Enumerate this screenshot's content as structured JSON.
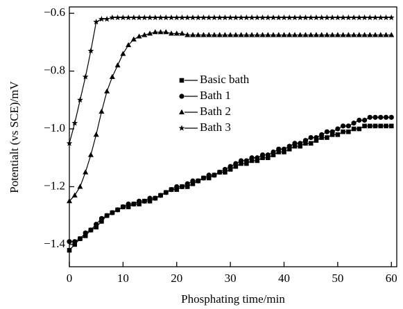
{
  "chart_data": {
    "type": "line",
    "x_label": "Phosphating time/min",
    "y_label": "Potentialt (vs SCE)/mV",
    "x": [
      0,
      1,
      2,
      3,
      4,
      5,
      6,
      7,
      8,
      9,
      10,
      11,
      12,
      13,
      14,
      15,
      16,
      17,
      18,
      19,
      20,
      21,
      22,
      23,
      24,
      25,
      26,
      27,
      28,
      29,
      30,
      31,
      32,
      33,
      34,
      35,
      36,
      37,
      38,
      39,
      40,
      41,
      42,
      43,
      44,
      45,
      46,
      47,
      48,
      49,
      50,
      51,
      52,
      53,
      54,
      55,
      56,
      57,
      58,
      59,
      60
    ],
    "series": [
      {
        "name": "Basic bath",
        "color": "#000000",
        "marker": "square",
        "values": [
          -1.42,
          -1.4,
          -1.38,
          -1.37,
          -1.35,
          -1.34,
          -1.32,
          -1.3,
          -1.29,
          -1.28,
          -1.27,
          -1.27,
          -1.26,
          -1.26,
          -1.25,
          -1.25,
          -1.24,
          -1.23,
          -1.22,
          -1.21,
          -1.21,
          -1.2,
          -1.2,
          -1.19,
          -1.18,
          -1.17,
          -1.17,
          -1.16,
          -1.15,
          -1.15,
          -1.14,
          -1.13,
          -1.12,
          -1.12,
          -1.11,
          -1.11,
          -1.1,
          -1.1,
          -1.09,
          -1.08,
          -1.08,
          -1.07,
          -1.06,
          -1.06,
          -1.05,
          -1.05,
          -1.04,
          -1.03,
          -1.03,
          -1.02,
          -1.02,
          -1.01,
          -1.01,
          -1.0,
          -1.0,
          -0.99,
          -0.99,
          -0.99,
          -0.99,
          -0.99,
          -0.99
        ]
      },
      {
        "name": "Bath 1",
        "color": "#000000",
        "marker": "circle",
        "values": [
          -1.39,
          -1.39,
          -1.38,
          -1.36,
          -1.35,
          -1.33,
          -1.31,
          -1.3,
          -1.29,
          -1.28,
          -1.27,
          -1.26,
          -1.26,
          -1.25,
          -1.25,
          -1.24,
          -1.24,
          -1.23,
          -1.22,
          -1.21,
          -1.2,
          -1.2,
          -1.19,
          -1.18,
          -1.18,
          -1.17,
          -1.16,
          -1.16,
          -1.15,
          -1.14,
          -1.13,
          -1.12,
          -1.11,
          -1.11,
          -1.1,
          -1.1,
          -1.09,
          -1.09,
          -1.08,
          -1.07,
          -1.07,
          -1.06,
          -1.05,
          -1.05,
          -1.04,
          -1.03,
          -1.03,
          -1.02,
          -1.01,
          -1.01,
          -1.0,
          -0.99,
          -0.99,
          -0.98,
          -0.97,
          -0.97,
          -0.96,
          -0.96,
          -0.96,
          -0.96,
          -0.96
        ]
      },
      {
        "name": "Bath 2",
        "color": "#000000",
        "marker": "triangle",
        "values": [
          -1.25,
          -1.23,
          -1.2,
          -1.15,
          -1.09,
          -1.02,
          -0.94,
          -0.87,
          -0.82,
          -0.78,
          -0.74,
          -0.71,
          -0.69,
          -0.68,
          -0.675,
          -0.67,
          -0.665,
          -0.665,
          -0.665,
          -0.67,
          -0.67,
          -0.67,
          -0.675,
          -0.675,
          -0.675,
          -0.675,
          -0.675,
          -0.675,
          -0.675,
          -0.675,
          -0.675,
          -0.675,
          -0.675,
          -0.675,
          -0.675,
          -0.675,
          -0.675,
          -0.675,
          -0.675,
          -0.675,
          -0.675,
          -0.675,
          -0.675,
          -0.675,
          -0.675,
          -0.675,
          -0.675,
          -0.675,
          -0.675,
          -0.675,
          -0.675,
          -0.675,
          -0.675,
          -0.675,
          -0.675,
          -0.675,
          -0.675,
          -0.675,
          -0.675,
          -0.675,
          -0.675
        ]
      },
      {
        "name": "Bath 3",
        "color": "#000000",
        "marker": "star",
        "values": [
          -1.05,
          -0.98,
          -0.9,
          -0.82,
          -0.73,
          -0.63,
          -0.62,
          -0.62,
          -0.615,
          -0.615,
          -0.615,
          -0.615,
          -0.615,
          -0.615,
          -0.615,
          -0.615,
          -0.615,
          -0.615,
          -0.615,
          -0.615,
          -0.615,
          -0.615,
          -0.615,
          -0.615,
          -0.615,
          -0.615,
          -0.615,
          -0.615,
          -0.615,
          -0.615,
          -0.615,
          -0.615,
          -0.615,
          -0.615,
          -0.615,
          -0.615,
          -0.615,
          -0.615,
          -0.615,
          -0.615,
          -0.615,
          -0.615,
          -0.615,
          -0.615,
          -0.615,
          -0.615,
          -0.615,
          -0.615,
          -0.615,
          -0.615,
          -0.615,
          -0.615,
          -0.615,
          -0.615,
          -0.615,
          -0.615,
          -0.615,
          -0.615,
          -0.615,
          -0.615,
          -0.615
        ]
      }
    ],
    "xlim": [
      0,
      61
    ],
    "ylim": [
      -1.477,
      -0.578
    ],
    "xticks": [
      0,
      10,
      20,
      30,
      40,
      50,
      60
    ],
    "yticks": [
      {
        "value": -0.6,
        "label": "−0.6"
      },
      {
        "value": -0.8,
        "label": "−0.8"
      },
      {
        "value": -1.0,
        "label": "−1.0"
      },
      {
        "value": -1.2,
        "label": "−1.2"
      },
      {
        "value": -1.4,
        "label": "−1.4"
      }
    ]
  }
}
